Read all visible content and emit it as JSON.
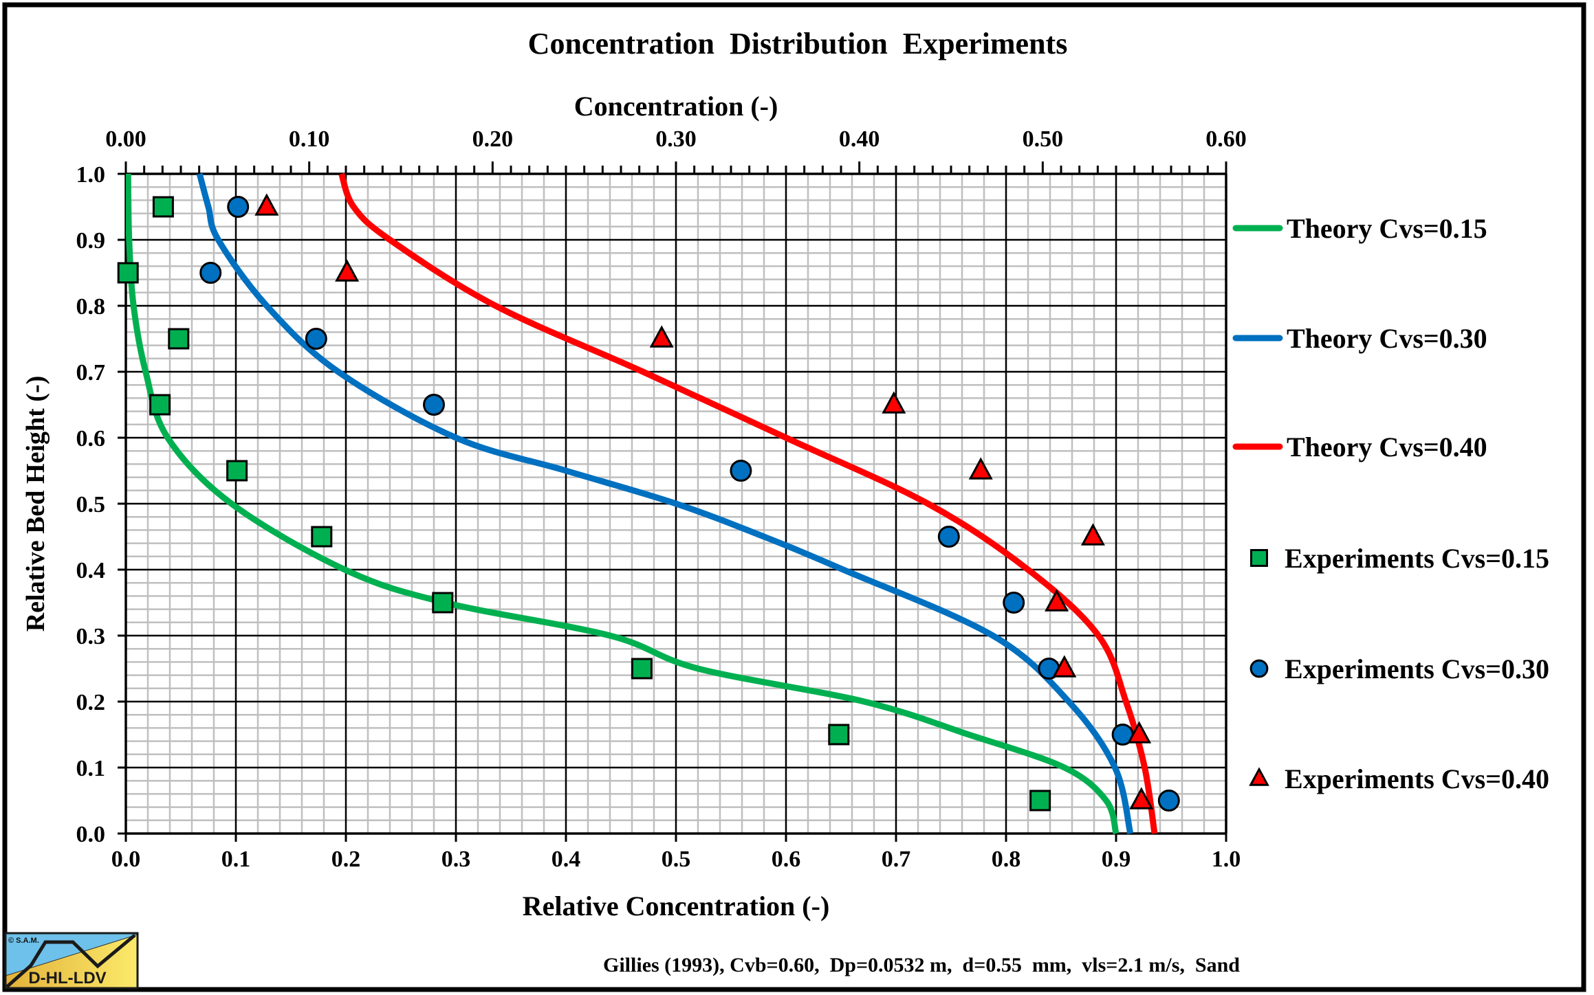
{
  "chart_data": {
    "type": "scatter",
    "title": "Concentration  Distribution  Experiments",
    "xlabel": "Relative Concentration (-)",
    "ylabel": "Relative Bed Height (-)",
    "x2label": "Concentration (-)",
    "xlim": [
      0,
      1.0
    ],
    "ylim": [
      0,
      1.0
    ],
    "x2lim": [
      0,
      0.6
    ],
    "grid": true,
    "legend_position": "right",
    "x_ticks": [
      "0.0",
      "0.1",
      "0.2",
      "0.3",
      "0.4",
      "0.5",
      "0.6",
      "0.7",
      "0.8",
      "0.9",
      "1.0"
    ],
    "y_ticks": [
      "0.0",
      "0.1",
      "0.2",
      "0.3",
      "0.4",
      "0.5",
      "0.6",
      "0.7",
      "0.8",
      "0.9",
      "1.0"
    ],
    "x2_ticks": [
      "0.00",
      "0.10",
      "0.20",
      "0.30",
      "0.40",
      "0.50",
      "0.60"
    ],
    "series": [
      {
        "name": "Theory Cvs=0.15",
        "kind": "line",
        "color": "#00B050",
        "x": [
          0.002,
          0.003,
          0.007,
          0.018,
          0.038,
          0.096,
          0.199,
          0.29,
          0.44,
          0.52,
          0.671,
          0.766,
          0.853,
          0.891,
          0.9
        ],
        "y": [
          1.0,
          0.9,
          0.8,
          0.7,
          0.6,
          0.5,
          0.4,
          0.35,
          0.3,
          0.25,
          0.2,
          0.15,
          0.1,
          0.05,
          0.0
        ]
      },
      {
        "name": "Theory Cvs=0.30",
        "kind": "line",
        "color": "#0070C0",
        "x": [
          0.067,
          0.075,
          0.084,
          0.128,
          0.193,
          0.3,
          0.4,
          0.5,
          0.58,
          0.652,
          0.788,
          0.857,
          0.899,
          0.913
        ],
        "y": [
          1.0,
          0.95,
          0.9,
          0.8,
          0.7,
          0.6,
          0.55,
          0.5,
          0.45,
          0.4,
          0.3,
          0.2,
          0.1,
          0.0
        ]
      },
      {
        "name": "Theory Cvs=0.40",
        "kind": "line",
        "color": "#FF0000",
        "x": [
          0.196,
          0.207,
          0.24,
          0.336,
          0.47,
          0.6,
          0.729,
          0.82,
          0.884,
          0.909,
          0.926,
          0.935
        ],
        "y": [
          1.0,
          0.95,
          0.9,
          0.8,
          0.7,
          0.6,
          0.5,
          0.4,
          0.3,
          0.2,
          0.1,
          0.0
        ]
      },
      {
        "name": "Experiments Cvs=0.15",
        "kind": "marker",
        "marker": "square",
        "color": "#00B050",
        "x": [
          0.034,
          0.002,
          0.048,
          0.031,
          0.101,
          0.178,
          0.288,
          0.469,
          0.648,
          0.831
        ],
        "y": [
          0.95,
          0.85,
          0.75,
          0.65,
          0.55,
          0.45,
          0.35,
          0.25,
          0.15,
          0.05
        ]
      },
      {
        "name": "Experiments Cvs=0.30",
        "kind": "marker",
        "marker": "circle",
        "color": "#0070C0",
        "x": [
          0.102,
          0.077,
          0.173,
          0.28,
          0.559,
          0.748,
          0.807,
          0.839,
          0.906,
          0.948
        ],
        "y": [
          0.95,
          0.85,
          0.75,
          0.65,
          0.55,
          0.45,
          0.35,
          0.25,
          0.15,
          0.05
        ]
      },
      {
        "name": "Experiments Cvs=0.40",
        "kind": "marker",
        "marker": "triangle",
        "color": "#FF0000",
        "x": [
          0.128,
          0.201,
          0.487,
          0.698,
          0.777,
          0.879,
          0.846,
          0.853,
          0.921,
          0.923
        ],
        "y": [
          0.95,
          0.85,
          0.75,
          0.65,
          0.55,
          0.45,
          0.35,
          0.25,
          0.15,
          0.05
        ]
      }
    ],
    "annotation": "Gillies (1993), Cvb=0.60,  Dp=0.0532 m,  d=0.55  mm,  vls=2.1 m/s,  Sand"
  },
  "logo": {
    "copyright": "© S.A.M.",
    "label": "D-HL-LDV"
  }
}
